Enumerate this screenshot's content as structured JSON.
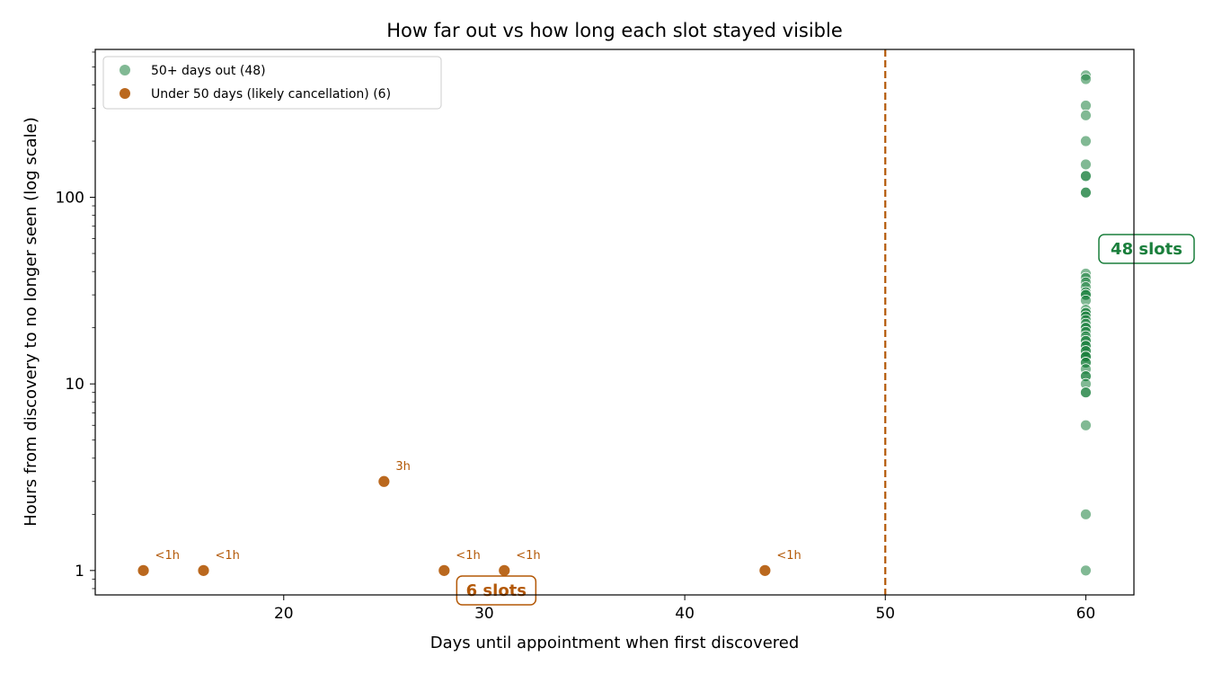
{
  "chart_data": {
    "type": "scatter",
    "title": "How far out vs how long each slot stayed visible",
    "xlabel": "Days until appointment when first discovered",
    "ylabel": "Hours from discovery to no longer seen (log scale)",
    "xlim": [
      10.6,
      62.4
    ],
    "ylim": [
      0.74,
      620
    ],
    "y_scale": "log",
    "x_ticks": [
      20,
      30,
      40,
      50,
      60
    ],
    "y_ticks": [
      1,
      10,
      100
    ],
    "threshold_line": {
      "x": 50,
      "style": "dashed",
      "color": "#b35806"
    },
    "legend_position": "top-left",
    "series": [
      {
        "name": "50+ days out (48)",
        "color": "#1a7f3c",
        "points": [
          {
            "x": 60,
            "y": 450
          },
          {
            "x": 60,
            "y": 430
          },
          {
            "x": 60,
            "y": 310
          },
          {
            "x": 60,
            "y": 275
          },
          {
            "x": 60,
            "y": 200
          },
          {
            "x": 60,
            "y": 150
          },
          {
            "x": 60,
            "y": 130
          },
          {
            "x": 60,
            "y": 130
          },
          {
            "x": 60,
            "y": 106
          },
          {
            "x": 60,
            "y": 106
          },
          {
            "x": 60,
            "y": 39
          },
          {
            "x": 60,
            "y": 37
          },
          {
            "x": 60,
            "y": 35
          },
          {
            "x": 60,
            "y": 33
          },
          {
            "x": 60,
            "y": 31
          },
          {
            "x": 60,
            "y": 30
          },
          {
            "x": 60,
            "y": 30
          },
          {
            "x": 60,
            "y": 28
          },
          {
            "x": 60,
            "y": 25
          },
          {
            "x": 60,
            "y": 24
          },
          {
            "x": 60,
            "y": 24
          },
          {
            "x": 60,
            "y": 23
          },
          {
            "x": 60,
            "y": 22
          },
          {
            "x": 60,
            "y": 21
          },
          {
            "x": 60,
            "y": 20
          },
          {
            "x": 60,
            "y": 20
          },
          {
            "x": 60,
            "y": 19
          },
          {
            "x": 60,
            "y": 18
          },
          {
            "x": 60,
            "y": 17
          },
          {
            "x": 60,
            "y": 17
          },
          {
            "x": 60,
            "y": 16
          },
          {
            "x": 60,
            "y": 16
          },
          {
            "x": 60,
            "y": 15
          },
          {
            "x": 60,
            "y": 15
          },
          {
            "x": 60,
            "y": 14
          },
          {
            "x": 60,
            "y": 14
          },
          {
            "x": 60,
            "y": 14
          },
          {
            "x": 60,
            "y": 13
          },
          {
            "x": 60,
            "y": 13
          },
          {
            "x": 60,
            "y": 12
          },
          {
            "x": 60,
            "y": 11
          },
          {
            "x": 60,
            "y": 11
          },
          {
            "x": 60,
            "y": 10
          },
          {
            "x": 60,
            "y": 9
          },
          {
            "x": 60,
            "y": 9
          },
          {
            "x": 60,
            "y": 6
          },
          {
            "x": 60,
            "y": 2
          },
          {
            "x": 60,
            "y": 1
          }
        ]
      },
      {
        "name": "Under 50 days (likely cancellation) (6)",
        "color": "#b35806",
        "points": [
          {
            "x": 13,
            "y": 1,
            "label": "<1h"
          },
          {
            "x": 16,
            "y": 1,
            "label": "<1h"
          },
          {
            "x": 25,
            "y": 3,
            "label": "3h"
          },
          {
            "x": 28,
            "y": 1,
            "label": "<1h"
          },
          {
            "x": 31,
            "y": 1,
            "label": "<1h"
          },
          {
            "x": 44,
            "y": 1,
            "label": "<1h"
          }
        ]
      }
    ],
    "annotations": [
      {
        "text": "48 slots",
        "color": "#1a7f3c",
        "x": 62.4,
        "y": 50
      },
      {
        "text": "6 slots",
        "color": "#b35806",
        "x": 30.6,
        "y": 0.78
      }
    ]
  }
}
